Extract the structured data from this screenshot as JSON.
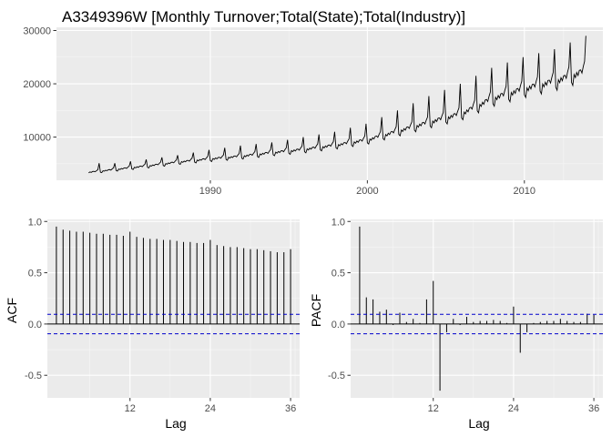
{
  "chart_data": [
    {
      "type": "line",
      "title": "A3349396W [Monthly Turnover;Total(State);Total(Industry)]",
      "xlabel": "",
      "ylabel": "",
      "xlim": [
        1980.2,
        2015.0
      ],
      "ylim": [
        1900,
        30600
      ],
      "x_ticks": [
        1990,
        2000,
        2010
      ],
      "x_tick_labels": [
        "1990",
        "2000",
        "2010"
      ],
      "y_ticks": [
        10000,
        20000,
        30000
      ],
      "y_tick_labels": [
        "10000",
        "20000",
        "30000"
      ],
      "grid": true,
      "series": [
        {
          "start": 1982.25,
          "frequency": 12,
          "annual_base": [
            [
              1982,
              3350
            ],
            [
              1984,
              4000
            ],
            [
              1986,
              4650
            ],
            [
              1988,
              5400
            ],
            [
              1990,
              6000
            ],
            [
              1992,
              6500
            ],
            [
              1994,
              7200
            ],
            [
              1996,
              7800
            ],
            [
              1998,
              8600
            ],
            [
              2000,
              9600
            ],
            [
              2002,
              11300
            ],
            [
              2004,
              13000
            ],
            [
              2006,
              14600
            ],
            [
              2008,
              17500
            ],
            [
              2010,
              19300
            ],
            [
              2012,
              20800
            ],
            [
              2013,
              21800
            ]
          ],
          "december_peak": [
            [
              1983,
              5100
            ],
            [
              1985,
              5800
            ],
            [
              1987,
              6600
            ],
            [
              1989,
              7600
            ],
            [
              1991,
              8400
            ],
            [
              1993,
              9000
            ],
            [
              1995,
              10000
            ],
            [
              1997,
              11000
            ],
            [
              1999,
              12500
            ],
            [
              2001,
              15000
            ],
            [
              2003,
              17700
            ],
            [
              2005,
              20000
            ],
            [
              2007,
              23000
            ],
            [
              2009,
              25000
            ],
            [
              2011,
              26500
            ],
            [
              2013,
              29000
            ]
          ]
        }
      ]
    },
    {
      "type": "bar",
      "xlabel": "Lag",
      "ylabel": "ACF",
      "xlim": [
        -0.35,
        37.35
      ],
      "ylim": [
        -0.72,
        1.02
      ],
      "x_ticks": [
        12,
        24,
        36
      ],
      "x_tick_labels": [
        "12",
        "24",
        "36"
      ],
      "y_ticks": [
        -0.5,
        0.0,
        0.5,
        1.0
      ],
      "y_tick_labels": [
        "-0.5",
        "0.0",
        "0.5",
        "1.0"
      ],
      "confidence_bound": 0.095,
      "grid": true,
      "lags": [
        1,
        2,
        3,
        4,
        5,
        6,
        7,
        8,
        9,
        10,
        11,
        12,
        13,
        14,
        15,
        16,
        17,
        18,
        19,
        20,
        21,
        22,
        23,
        24,
        25,
        26,
        27,
        28,
        29,
        30,
        31,
        32,
        33,
        34,
        35,
        36
      ],
      "values": [
        0.95,
        0.92,
        0.91,
        0.9,
        0.9,
        0.89,
        0.88,
        0.88,
        0.87,
        0.87,
        0.86,
        0.9,
        0.85,
        0.84,
        0.83,
        0.83,
        0.82,
        0.82,
        0.81,
        0.8,
        0.8,
        0.79,
        0.79,
        0.82,
        0.77,
        0.76,
        0.75,
        0.75,
        0.74,
        0.73,
        0.73,
        0.72,
        0.71,
        0.7,
        0.7,
        0.73
      ]
    },
    {
      "type": "bar",
      "xlabel": "Lag",
      "ylabel": "PACF",
      "xlim": [
        -0.35,
        37.35
      ],
      "ylim": [
        -0.72,
        1.02
      ],
      "x_ticks": [
        12,
        24,
        36
      ],
      "x_tick_labels": [
        "12",
        "24",
        "36"
      ],
      "y_ticks": [
        -0.5,
        0.0,
        0.5,
        1.0
      ],
      "y_tick_labels": [
        "-0.5",
        "0.0",
        "0.5",
        "1.0"
      ],
      "confidence_bound": 0.095,
      "grid": true,
      "lags": [
        1,
        2,
        3,
        4,
        5,
        6,
        7,
        8,
        9,
        10,
        11,
        12,
        13,
        14,
        15,
        16,
        17,
        18,
        19,
        20,
        21,
        22,
        23,
        24,
        25,
        26,
        27,
        28,
        29,
        30,
        31,
        32,
        33,
        34,
        35,
        36
      ],
      "values": [
        0.95,
        0.26,
        0.24,
        0.12,
        0.14,
        -0.01,
        0.11,
        0.02,
        0.05,
        0.01,
        0.24,
        0.42,
        -0.65,
        -0.08,
        0.05,
        -0.01,
        0.07,
        0.02,
        0.03,
        0.03,
        0.04,
        0.03,
        0.01,
        0.17,
        -0.28,
        -0.08,
        0.01,
        0.02,
        0.03,
        0.03,
        0.05,
        0.03,
        0.02,
        0.02,
        0.1,
        0.09
      ]
    }
  ]
}
